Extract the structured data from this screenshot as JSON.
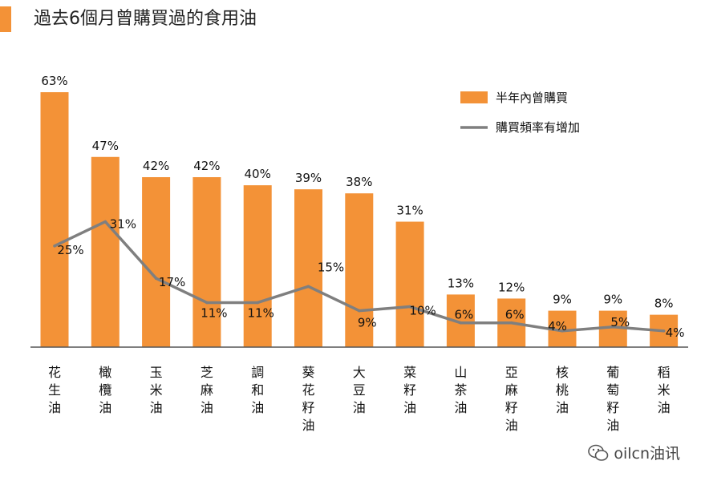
{
  "title": "過去6個月曾購買過的食用油",
  "watermark": "oilcn油讯",
  "colors": {
    "accent": "#f39237",
    "bar": "#f39237",
    "line": "#7f7f7f",
    "axis": "#555555"
  },
  "chart_data": {
    "type": "bar",
    "title": "過去6個月曾購買過的食用油",
    "categories": [
      "花生油",
      "橄欖油",
      "玉米油",
      "芝麻油",
      "調和油",
      "葵花籽油",
      "大豆油",
      "菜籽油",
      "山茶油",
      "亞麻籽油",
      "核桃油",
      "葡萄籽油",
      "稻米油"
    ],
    "series": [
      {
        "name": "半年內曾購買",
        "type": "bar",
        "values": [
          63,
          47,
          42,
          42,
          40,
          39,
          38,
          31,
          13,
          12,
          9,
          9,
          8
        ],
        "labels": [
          "63%",
          "47%",
          "42%",
          "42%",
          "40%",
          "39%",
          "38%",
          "31%",
          "13%",
          "12%",
          "9%",
          "9%",
          "8%"
        ]
      },
      {
        "name": "購買頻率有增加",
        "type": "line",
        "values": [
          25,
          31,
          17,
          11,
          11,
          15,
          9,
          10,
          6,
          6,
          4,
          5,
          4
        ],
        "labels": [
          "25%",
          "31%",
          "17%",
          "11%",
          "11%",
          "15%",
          "9%",
          "10%",
          "6%",
          "6%",
          "4%",
          "5%",
          "4%"
        ]
      }
    ],
    "ylim": [
      0,
      63
    ],
    "xlabel": "",
    "ylabel": "",
    "grid": false,
    "legend_position": "top-right"
  }
}
